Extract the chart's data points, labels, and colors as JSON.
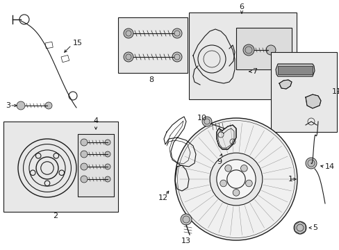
{
  "bg_color": "#ffffff",
  "line_color": "#1a1a1a",
  "fill_color": "#e8e8e8",
  "fig_width": 4.89,
  "fig_height": 3.6,
  "dpi": 100
}
